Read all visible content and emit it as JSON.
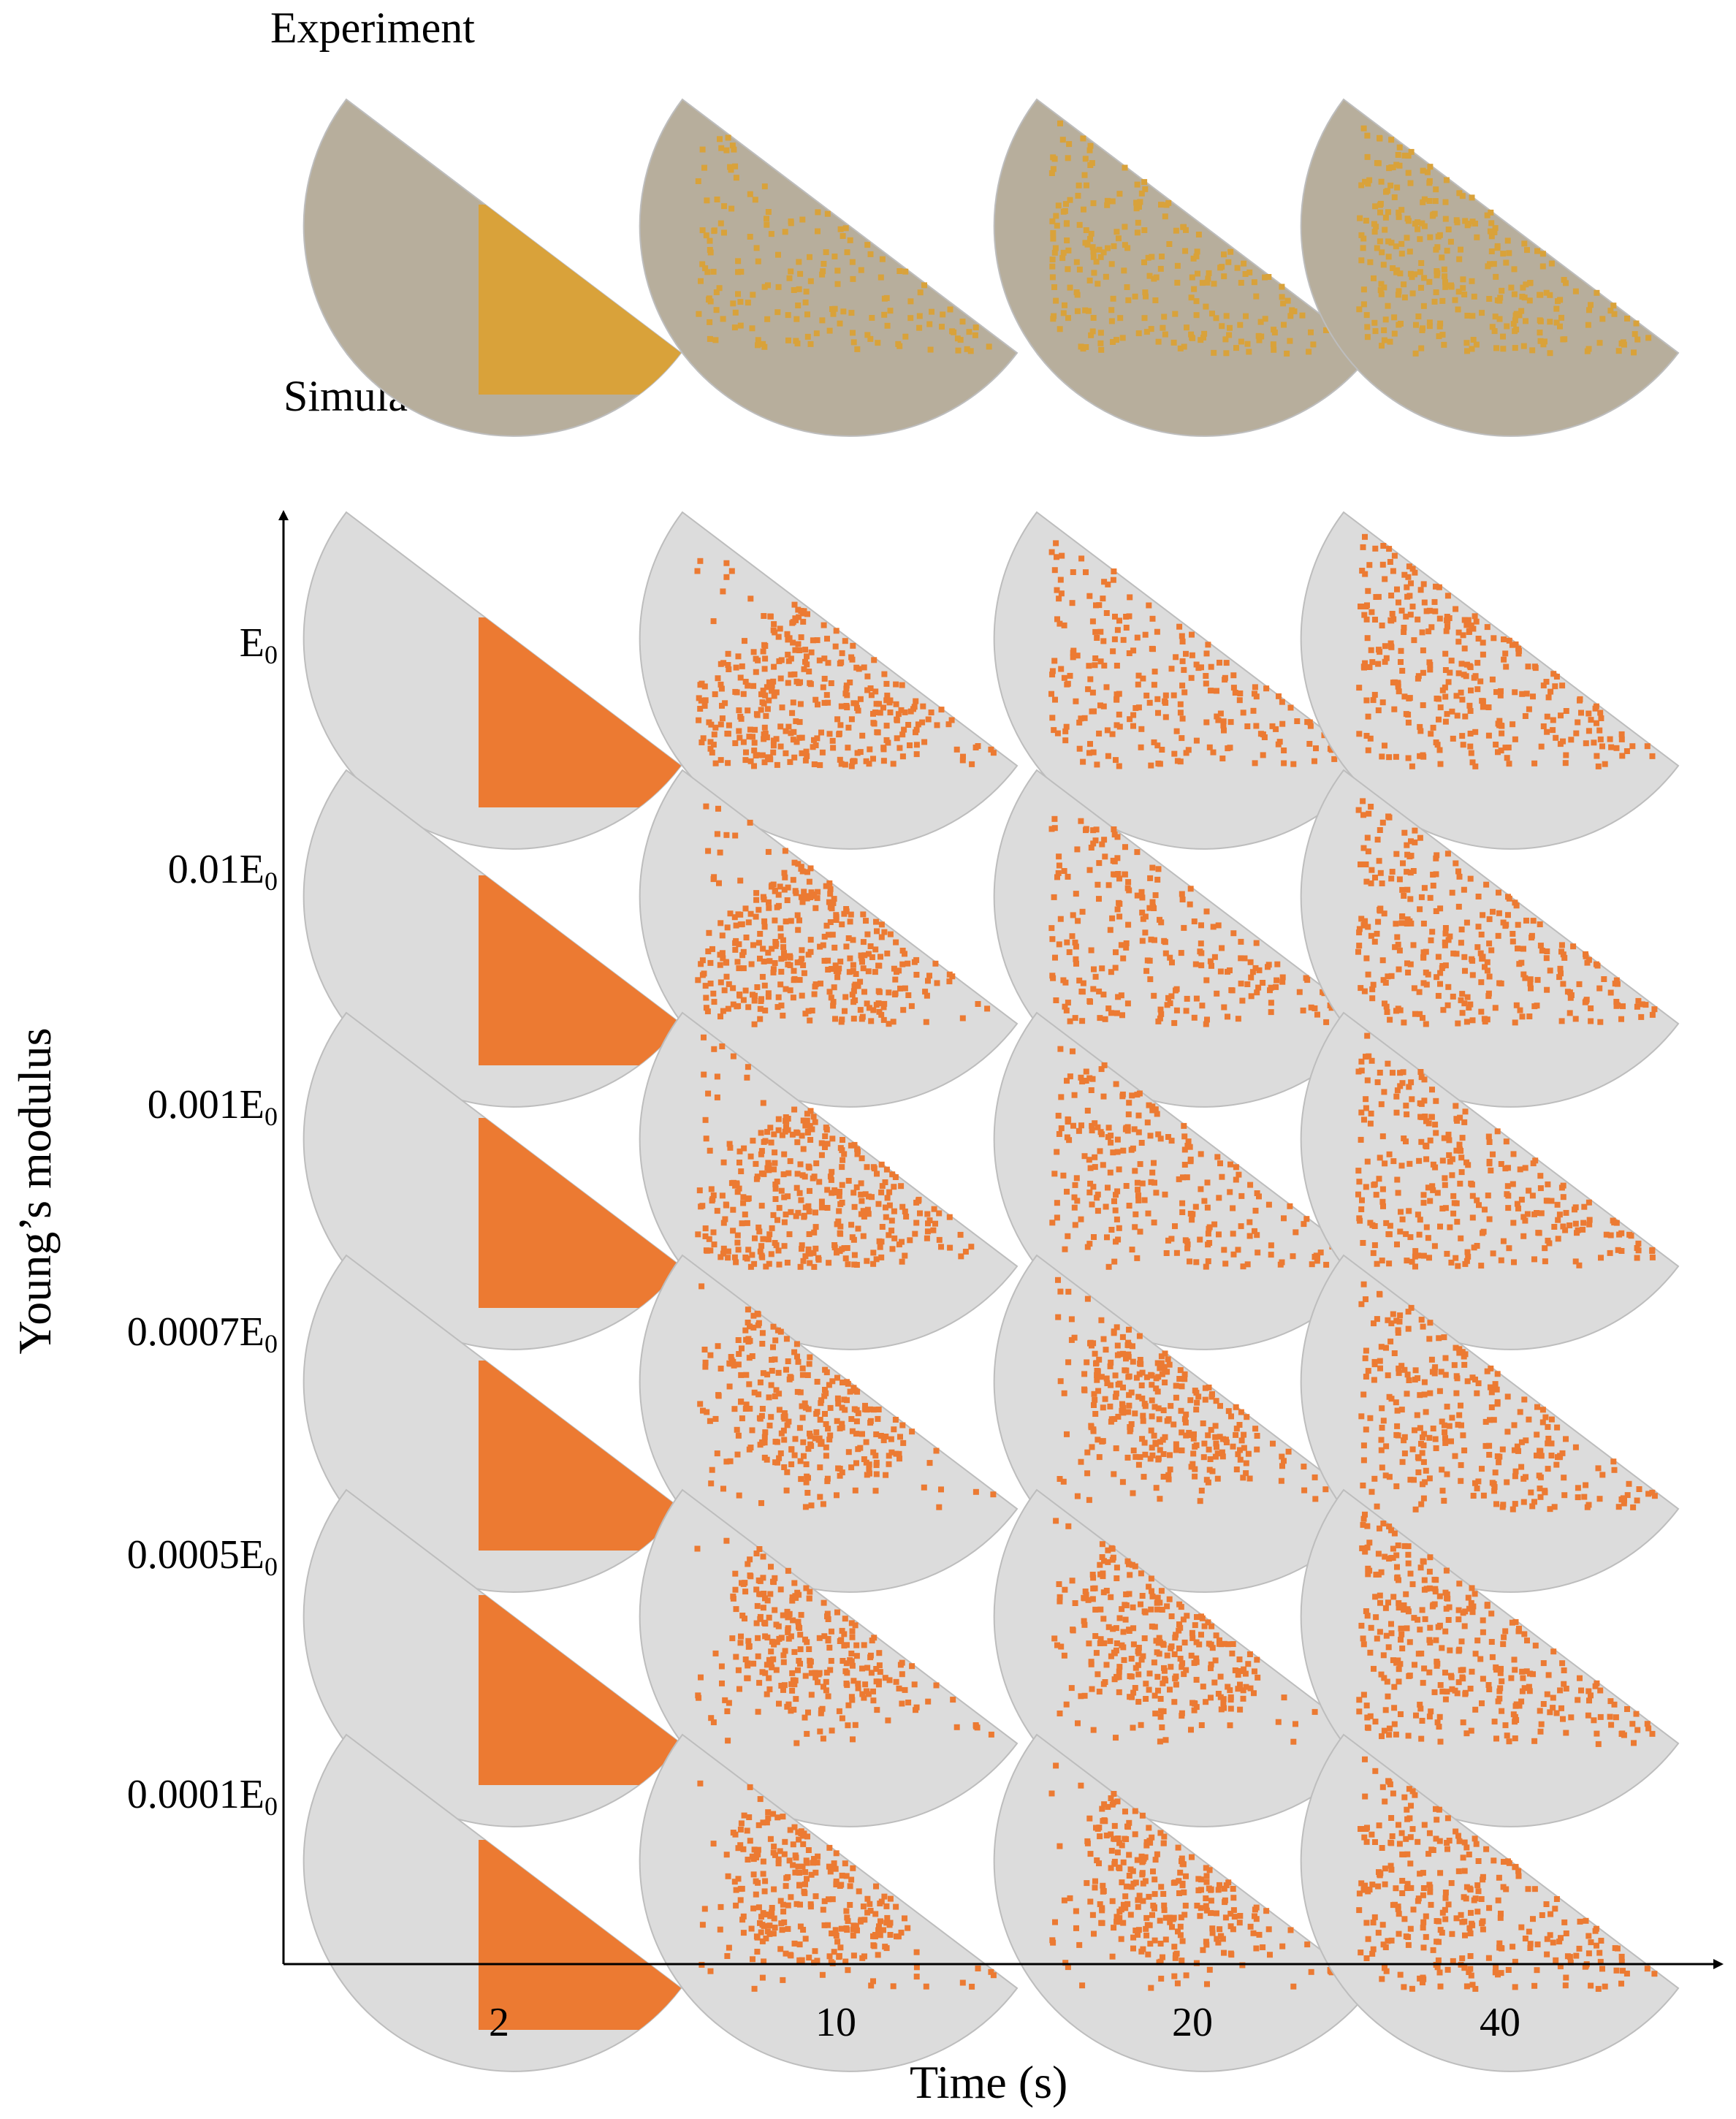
{
  "experiment_heading": "Experiment",
  "simulation_heading": "Simulation",
  "y_axis_title": "Young’s modulus",
  "x_axis_title": "Time (s)",
  "rows": [
    {
      "prefix": "",
      "symbol": "E",
      "subscript": "0"
    },
    {
      "prefix": "0.01",
      "symbol": "E",
      "subscript": "0"
    },
    {
      "prefix": "0.001",
      "symbol": "E",
      "subscript": "0"
    },
    {
      "prefix": "0.0007",
      "symbol": "E",
      "subscript": "0"
    },
    {
      "prefix": "0.0005",
      "symbol": "E",
      "subscript": "0"
    },
    {
      "prefix": "0.0001",
      "symbol": "E",
      "subscript": "0"
    }
  ],
  "columns": [
    "2",
    "10",
    "20",
    "40"
  ],
  "colors": {
    "experiment_gray": "#b7ae9c",
    "experiment_orange": "#d9a23a",
    "simulation_gray": "#dcdcdc",
    "simulation_orange": "#ec7a32",
    "edge_gray": "#bdbdbd"
  }
}
